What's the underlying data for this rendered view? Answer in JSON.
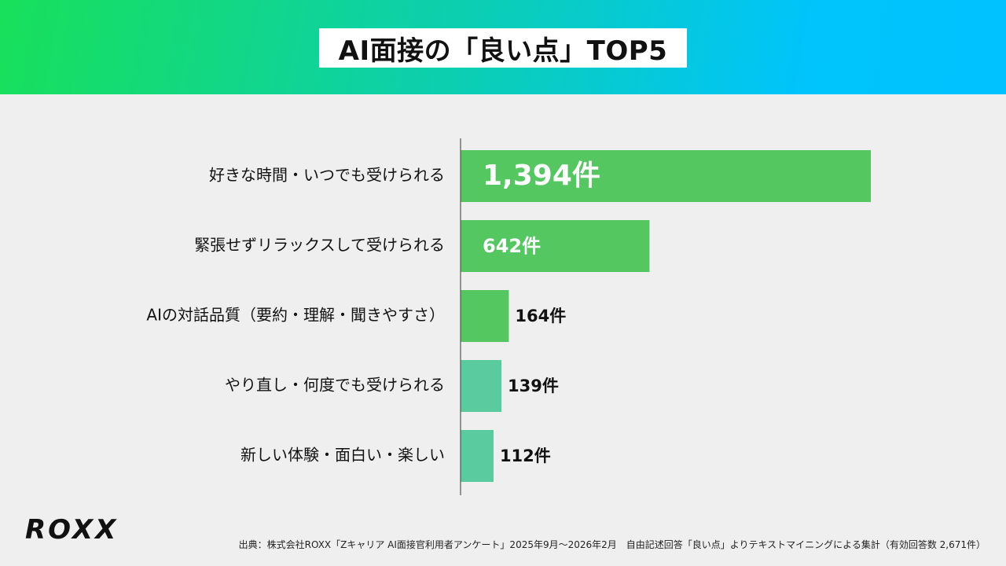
{
  "header": {
    "title": "AI面接の「良い点」TOP5"
  },
  "chart_data": {
    "type": "bar",
    "orientation": "horizontal",
    "title": "AI面接の「良い点」TOP5",
    "categories": [
      "好きな時間・いつでも受けられる",
      "緊張せずリラックスして受けられる",
      "AIの対話品質（要約・理解・聞きやすさ）",
      "やり直し・何度でも受けられる",
      "新しい体験・面白い・楽しい"
    ],
    "values": [
      1394,
      642,
      164,
      139,
      112
    ],
    "data_labels": [
      "1,394件",
      "642件",
      "164件",
      "139件",
      "112件"
    ],
    "bar_colors": [
      "#54c761",
      "#54c761",
      "#54c761",
      "#5acb9e",
      "#5acb9e"
    ],
    "grid": false,
    "xlabel": "",
    "ylabel": ""
  },
  "footer": {
    "logo": "ROXX",
    "source": "出典：株式会社ROXX「Zキャリア AI面接官利用者アンケート」2025年9月〜2026年2月　自由記述回答「良い点」よりテキストマイニングによる集計（有効回答数 2,671件）"
  },
  "colors": {
    "header_gradient_start": "#18e05a",
    "header_gradient_end": "#00c2ff",
    "background": "#efefef",
    "bar_green": "#54c761",
    "bar_teal": "#5acb9e"
  }
}
